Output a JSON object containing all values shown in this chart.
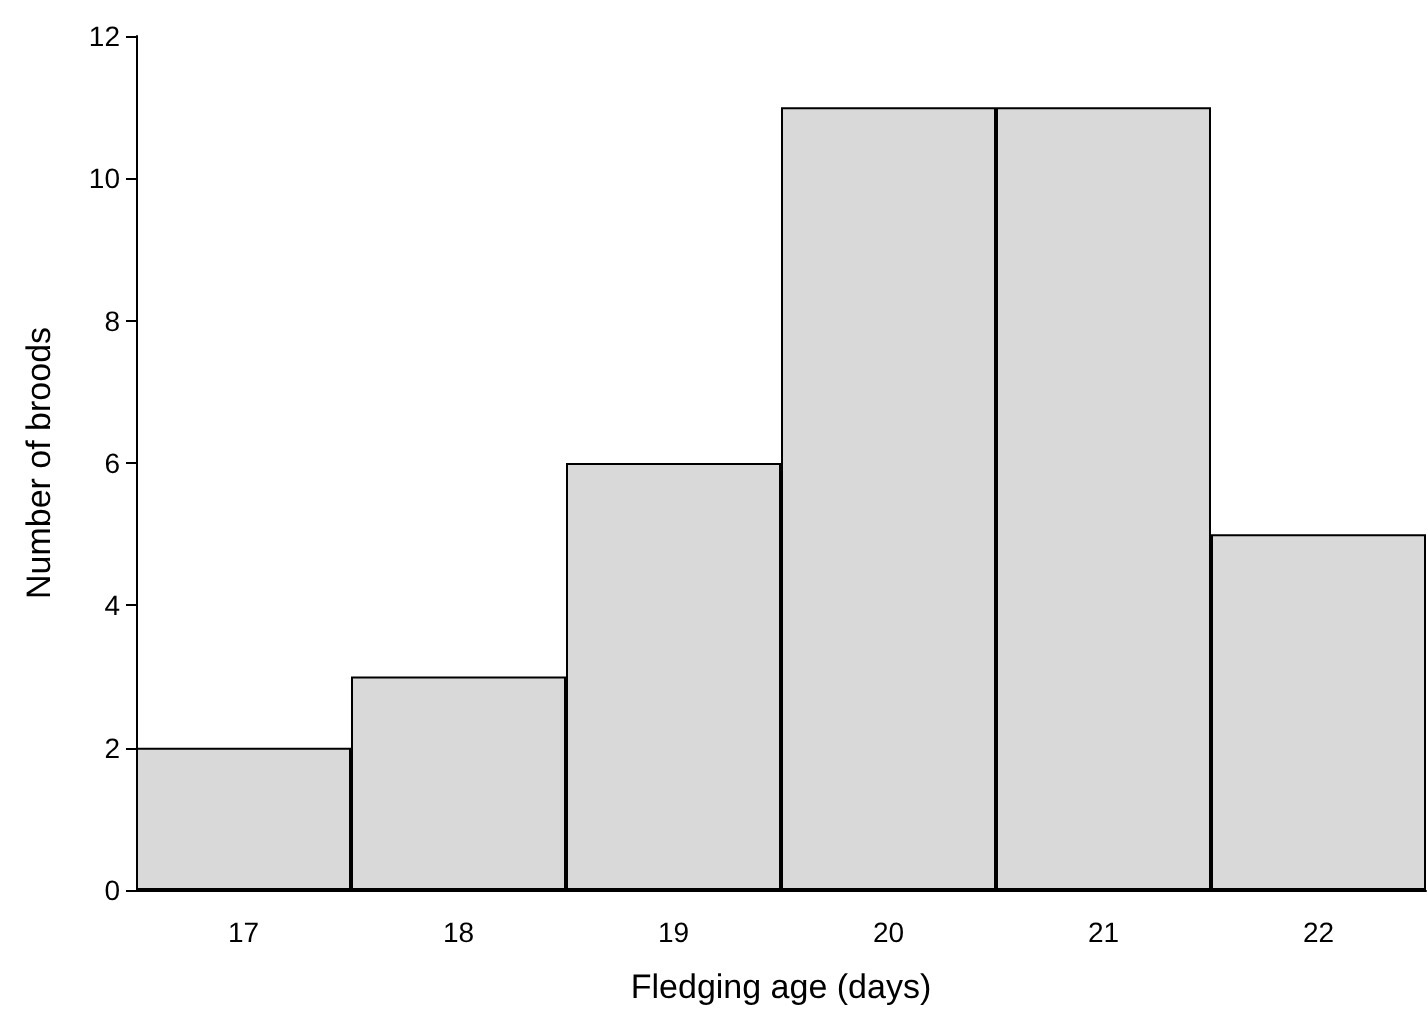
{
  "chart_data": {
    "type": "bar",
    "xlabel": "Fledging age (days)",
    "ylabel": "Number of broods",
    "categories": [
      "17",
      "18",
      "19",
      "20",
      "21",
      "22"
    ],
    "values": [
      2,
      3,
      6,
      11,
      11,
      5
    ],
    "color": "#d9d9d9",
    "ylim": [
      0,
      12
    ],
    "yticks": [
      0,
      2,
      4,
      6,
      8,
      10,
      12
    ],
    "grid": false
  }
}
